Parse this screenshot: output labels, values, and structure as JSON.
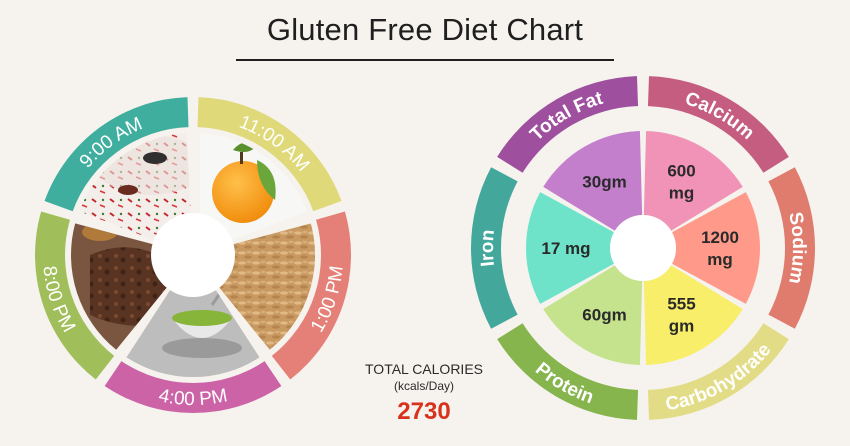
{
  "title": "Gluten Free Diet Chart",
  "meal_wheel": {
    "segments": [
      {
        "label": "9:00 AM",
        "color": "#3fae9e",
        "food": "garnished plate"
      },
      {
        "label": "11:00 AM",
        "color": "#dfd97a",
        "food": "orange"
      },
      {
        "label": "1:00 PM",
        "color": "#e58078",
        "food": "brown rice"
      },
      {
        "label": "4:00 PM",
        "color": "#cc63a6",
        "food": "green tea"
      },
      {
        "label": "8:00 PM",
        "color": "#a0bf5b",
        "food": "grilled meat"
      }
    ]
  },
  "total": {
    "label": "TOTAL CALORIES",
    "unit": "(kcals/Day)",
    "value": "2730"
  },
  "nutrient_wheel": {
    "segments": [
      {
        "name": "Total Fat",
        "value_lines": [
          "30gm"
        ],
        "ring_color": "#9e4f9e",
        "inner_color": "#c37fcc"
      },
      {
        "name": "Calcium",
        "value_lines": [
          "600",
          "mg"
        ],
        "ring_color": "#c55d81",
        "inner_color": "#f193b6"
      },
      {
        "name": "Sodium",
        "value_lines": [
          "1200",
          "mg"
        ],
        "ring_color": "#df7c6e",
        "inner_color": "#ff9a8a"
      },
      {
        "name": "Carbohydrate",
        "value_lines": [
          "555",
          "gm"
        ],
        "ring_color": "#e3dc86",
        "inner_color": "#f8ee6a"
      },
      {
        "name": "Protein",
        "value_lines": [
          "60gm"
        ],
        "ring_color": "#86b44d",
        "inner_color": "#c4e38c"
      },
      {
        "name": "Iron",
        "value_lines": [
          "17 mg"
        ],
        "ring_color": "#43a79b",
        "inner_color": "#6fe3c9"
      }
    ]
  }
}
